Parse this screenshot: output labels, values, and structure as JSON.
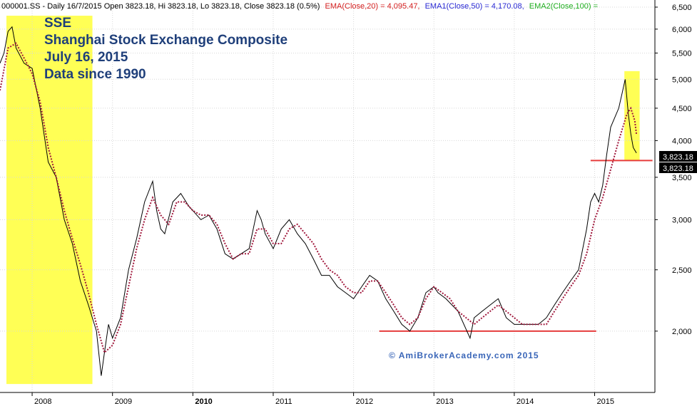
{
  "header": {
    "prefix": "000001.SS - Daily 16/7/2015 Open 3823.18, Hi 3823.18, Lo 3823.18, Close 3823.18 (0.5%)",
    "ema20": "EMA(Close,20) = 4,095.47,",
    "ema50": "EMA1(Close,50) = 4,170.08,",
    "ema100": "EMA2(Close,100) ="
  },
  "title_lines": [
    "SSE",
    "Shanghai Stock Exchange Composite",
    "July 16, 2015",
    "Data since 1990"
  ],
  "watermark": "© AmiBrokerAcademy.com 2015",
  "price_labels": [
    "3,823.18",
    "3,823.18"
  ],
  "colors": {
    "price": "#000000",
    "ema": "#a0183c",
    "highlight": "#ffff55",
    "support": "#e63c3c",
    "title": "#1f3f7a",
    "ema20_header": "#d42020",
    "ema50_header": "#2a2ad4",
    "ema100_header": "#1fae1f"
  },
  "chart_data": {
    "type": "line",
    "scale": "log",
    "ylim": [
      1600,
      6500
    ],
    "xlim": [
      2007.6,
      2015.75
    ],
    "yticks": [
      {
        "value": 2000,
        "label": "2,000"
      },
      {
        "value": 2500,
        "label": "2,500"
      },
      {
        "value": 3000,
        "label": "3,000"
      },
      {
        "value": 3500,
        "label": "3,500"
      },
      {
        "value": 4000,
        "label": "4,000"
      },
      {
        "value": 4500,
        "label": "4,500"
      },
      {
        "value": 5000,
        "label": "5,000"
      },
      {
        "value": 5500,
        "label": "5,500"
      },
      {
        "value": 6000,
        "label": "6,000"
      },
      {
        "value": 6500,
        "label": "6,500"
      }
    ],
    "xticks": [
      {
        "value": 2008,
        "label": "2008"
      },
      {
        "value": 2009,
        "label": "2009"
      },
      {
        "value": 2010,
        "label": "2010"
      },
      {
        "value": 2011,
        "label": "2011"
      },
      {
        "value": 2012,
        "label": "2012"
      },
      {
        "value": 2013,
        "label": "2013"
      },
      {
        "value": 2014,
        "label": "2014"
      },
      {
        "value": 2015,
        "label": "2015"
      }
    ],
    "price": {
      "x": [
        2007.6,
        2007.65,
        2007.7,
        2007.75,
        2007.8,
        2007.9,
        2008.0,
        2008.1,
        2008.2,
        2008.3,
        2008.4,
        2008.5,
        2008.6,
        2008.7,
        2008.8,
        2008.86,
        2008.9,
        2008.95,
        2009.0,
        2009.1,
        2009.2,
        2009.3,
        2009.4,
        2009.5,
        2009.55,
        2009.6,
        2009.65,
        2009.75,
        2009.85,
        2009.95,
        2010.0,
        2010.1,
        2010.2,
        2010.3,
        2010.4,
        2010.5,
        2010.6,
        2010.7,
        2010.8,
        2010.85,
        2010.9,
        2011.0,
        2011.1,
        2011.2,
        2011.3,
        2011.4,
        2011.5,
        2011.6,
        2011.7,
        2011.8,
        2011.9,
        2012.0,
        2012.1,
        2012.2,
        2012.3,
        2012.4,
        2012.5,
        2012.6,
        2012.7,
        2012.8,
        2012.9,
        2013.0,
        2013.05,
        2013.15,
        2013.3,
        2013.45,
        2013.5,
        2013.6,
        2013.7,
        2013.8,
        2013.9,
        2014.0,
        2014.1,
        2014.2,
        2014.3,
        2014.4,
        2014.5,
        2014.6,
        2014.7,
        2014.8,
        2014.9,
        2014.95,
        2015.0,
        2015.05,
        2015.1,
        2015.15,
        2015.2,
        2015.3,
        2015.35,
        2015.38,
        2015.42,
        2015.45,
        2015.48,
        2015.52
      ],
      "y": [
        5300,
        5500,
        5950,
        6050,
        5600,
        5300,
        5200,
        4500,
        3700,
        3500,
        3000,
        2750,
        2400,
        2200,
        2000,
        1700,
        1850,
        2050,
        1950,
        2100,
        2500,
        2800,
        3200,
        3450,
        3100,
        2900,
        2850,
        3200,
        3300,
        3150,
        3100,
        3000,
        3050,
        2900,
        2650,
        2600,
        2650,
        2700,
        3100,
        3000,
        2850,
        2700,
        2900,
        3000,
        2850,
        2750,
        2600,
        2450,
        2450,
        2350,
        2300,
        2250,
        2350,
        2450,
        2400,
        2250,
        2150,
        2050,
        2000,
        2100,
        2300,
        2350,
        2300,
        2250,
        2150,
        1950,
        2100,
        2150,
        2200,
        2250,
        2100,
        2050,
        2050,
        2050,
        2050,
        2100,
        2200,
        2300,
        2400,
        2500,
        2900,
        3200,
        3300,
        3200,
        3400,
        3800,
        4200,
        4500,
        4800,
        5000,
        4400,
        4100,
        3900,
        3823.18
      ]
    },
    "ema": {
      "x": [
        2007.6,
        2007.7,
        2007.8,
        2007.9,
        2008.0,
        2008.1,
        2008.2,
        2008.3,
        2008.4,
        2008.5,
        2008.6,
        2008.7,
        2008.8,
        2008.9,
        2009.0,
        2009.1,
        2009.2,
        2009.3,
        2009.4,
        2009.5,
        2009.6,
        2009.7,
        2009.8,
        2009.9,
        2010.0,
        2010.1,
        2010.2,
        2010.3,
        2010.4,
        2010.5,
        2010.6,
        2010.7,
        2010.8,
        2010.9,
        2011.0,
        2011.1,
        2011.2,
        2011.3,
        2011.4,
        2011.5,
        2011.6,
        2011.7,
        2011.8,
        2011.9,
        2012.0,
        2012.1,
        2012.2,
        2012.3,
        2012.4,
        2012.5,
        2012.6,
        2012.7,
        2012.8,
        2012.9,
        2013.0,
        2013.1,
        2013.2,
        2013.3,
        2013.4,
        2013.5,
        2013.6,
        2013.7,
        2013.8,
        2013.9,
        2014.0,
        2014.1,
        2014.2,
        2014.3,
        2014.4,
        2014.5,
        2014.6,
        2014.7,
        2014.8,
        2014.9,
        2015.0,
        2015.1,
        2015.2,
        2015.3,
        2015.4,
        2015.45,
        2015.5,
        2015.52
      ],
      "y": [
        4800,
        5600,
        5700,
        5400,
        5100,
        4600,
        3900,
        3500,
        3100,
        2800,
        2550,
        2300,
        2050,
        1850,
        1900,
        2050,
        2350,
        2700,
        3000,
        3250,
        3050,
        2950,
        3200,
        3200,
        3100,
        3050,
        3050,
        2950,
        2750,
        2600,
        2650,
        2650,
        2900,
        2900,
        2750,
        2750,
        2900,
        2950,
        2850,
        2750,
        2600,
        2500,
        2450,
        2350,
        2300,
        2300,
        2400,
        2400,
        2300,
        2200,
        2100,
        2050,
        2100,
        2250,
        2350,
        2300,
        2250,
        2150,
        2100,
        2050,
        2100,
        2150,
        2200,
        2150,
        2100,
        2050,
        2050,
        2050,
        2050,
        2150,
        2250,
        2350,
        2450,
        2650,
        3000,
        3250,
        3600,
        4000,
        4400,
        4500,
        4300,
        4095.47
      ]
    },
    "highlights": [
      {
        "x0": 2007.68,
        "x1": 2008.75,
        "y0": 1650,
        "y1": 6300
      },
      {
        "x0": 2015.37,
        "x1": 2015.56,
        "y0": 3720,
        "y1": 5150
      }
    ],
    "support_lines": [
      {
        "x0": 2012.32,
        "x1": 2015.02,
        "y": 2000
      },
      {
        "x0": 2014.95,
        "x1": 2015.72,
        "y": 3720
      }
    ],
    "last_close": 3823.18
  }
}
